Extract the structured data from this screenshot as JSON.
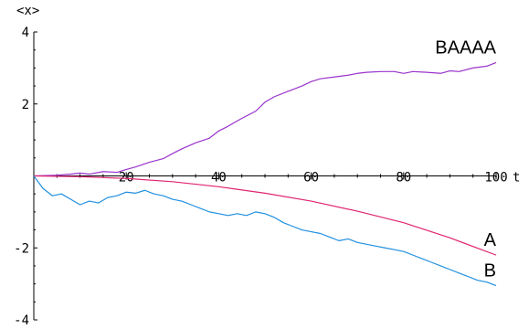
{
  "chart_data": {
    "type": "line",
    "xlabel": "t",
    "ylabel": "<x>",
    "xlim": [
      0,
      100
    ],
    "ylim": [
      -4,
      4
    ],
    "x_ticks": [
      20,
      40,
      60,
      80,
      100
    ],
    "y_ticks": [
      -4,
      -2,
      2,
      4
    ],
    "grid": false,
    "series": [
      {
        "name": "BAAAA",
        "color": "#9933cc",
        "x": [
          0,
          5,
          8,
          10,
          12,
          15,
          18,
          20,
          22,
          25,
          28,
          30,
          32,
          35,
          38,
          40,
          42,
          45,
          48,
          50,
          52,
          55,
          58,
          60,
          62,
          65,
          68,
          70,
          72,
          75,
          78,
          80,
          82,
          85,
          88,
          90,
          92,
          95,
          98,
          100
        ],
        "values": [
          0.0,
          0.02,
          0.05,
          0.08,
          0.05,
          0.12,
          0.1,
          0.18,
          0.25,
          0.38,
          0.48,
          0.62,
          0.75,
          0.92,
          1.05,
          1.25,
          1.38,
          1.6,
          1.8,
          2.05,
          2.2,
          2.35,
          2.5,
          2.62,
          2.7,
          2.75,
          2.8,
          2.85,
          2.88,
          2.9,
          2.9,
          2.85,
          2.9,
          2.88,
          2.85,
          2.92,
          2.9,
          3.0,
          3.05,
          3.15
        ]
      },
      {
        "name": "A",
        "color": "#e0246f",
        "x": [
          0,
          10,
          20,
          30,
          40,
          50,
          60,
          70,
          80,
          90,
          100
        ],
        "values": [
          0.0,
          -0.02,
          -0.07,
          -0.16,
          -0.3,
          -0.48,
          -0.7,
          -0.98,
          -1.3,
          -1.72,
          -2.2
        ]
      },
      {
        "name": "B",
        "color": "#1f8fe0",
        "x": [
          0,
          2,
          4,
          6,
          8,
          10,
          12,
          14,
          16,
          18,
          20,
          22,
          24,
          26,
          28,
          30,
          32,
          34,
          36,
          38,
          40,
          42,
          44,
          46,
          48,
          50,
          52,
          54,
          56,
          58,
          60,
          62,
          64,
          66,
          68,
          70,
          72,
          74,
          76,
          78,
          80,
          82,
          84,
          86,
          88,
          90,
          92,
          94,
          96,
          98,
          100
        ],
        "values": [
          0.0,
          -0.35,
          -0.55,
          -0.5,
          -0.65,
          -0.8,
          -0.7,
          -0.75,
          -0.6,
          -0.55,
          -0.45,
          -0.48,
          -0.4,
          -0.5,
          -0.55,
          -0.65,
          -0.7,
          -0.8,
          -0.9,
          -1.0,
          -1.05,
          -1.1,
          -1.05,
          -1.1,
          -1.0,
          -1.05,
          -1.15,
          -1.3,
          -1.4,
          -1.5,
          -1.55,
          -1.6,
          -1.7,
          -1.8,
          -1.75,
          -1.85,
          -1.9,
          -1.95,
          -2.0,
          -2.05,
          -2.1,
          -2.2,
          -2.3,
          -2.4,
          -2.5,
          -2.6,
          -2.7,
          -2.8,
          -2.9,
          -2.95,
          -3.05
        ]
      }
    ]
  }
}
